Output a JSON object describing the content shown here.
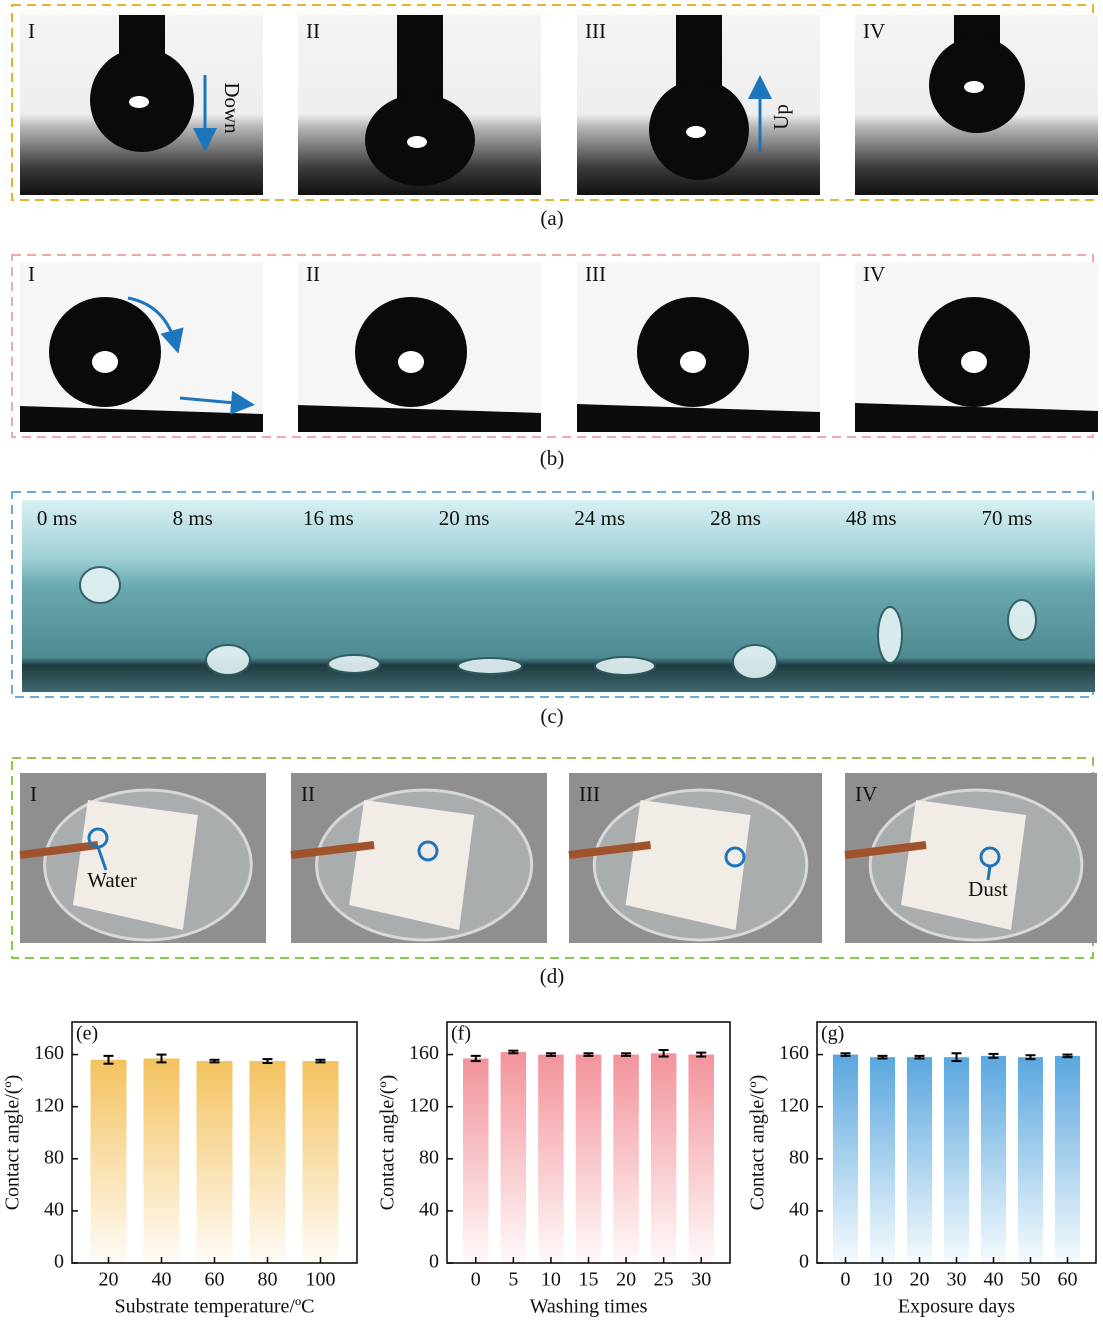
{
  "figure": {
    "panels": [
      {
        "caption": "(a)",
        "labels": [
          "I",
          "II",
          "III",
          "IV"
        ],
        "annotations": [
          "Down",
          "Up"
        ]
      },
      {
        "caption": "(b)",
        "labels": [
          "I",
          "II",
          "III",
          "IV"
        ]
      },
      {
        "caption": "(c)",
        "labels": [
          "0 ms",
          "8 ms",
          "16 ms",
          "20 ms",
          "24 ms",
          "28 ms",
          "48 ms",
          "70 ms"
        ]
      },
      {
        "caption": "(d)",
        "labels": [
          "I",
          "II",
          "III",
          "IV"
        ],
        "annotations": [
          "Water",
          "Dust"
        ]
      }
    ]
  },
  "chart_data": [
    {
      "type": "bar",
      "panel_label": "(e)",
      "xlabel": "Substrate temperature/ºC",
      "ylabel": "Contact angle/(º)",
      "categories": [
        "20",
        "40",
        "60",
        "80",
        "100"
      ],
      "values": [
        156,
        157,
        155,
        155,
        155
      ],
      "errors": [
        3,
        3,
        1,
        1.5,
        1
      ],
      "color": "#f3c25f",
      "ylim": [
        0,
        185
      ],
      "yticks": [
        0,
        40,
        80,
        120,
        160
      ]
    },
    {
      "type": "bar",
      "panel_label": "(f)",
      "xlabel": "Washing times",
      "ylabel": "Contact angle/(º)",
      "categories": [
        "0",
        "5",
        "10",
        "15",
        "20",
        "25",
        "30"
      ],
      "values": [
        157,
        162,
        160,
        160,
        160,
        161,
        160
      ],
      "errors": [
        2,
        1,
        1,
        1,
        1,
        2.5,
        1.5
      ],
      "color": "#f2939b",
      "ylim": [
        0,
        185
      ],
      "yticks": [
        0,
        40,
        80,
        120,
        160
      ]
    },
    {
      "type": "bar",
      "panel_label": "(g)",
      "xlabel": "Exposure days",
      "ylabel": "Contact angle/(º)",
      "categories": [
        "0",
        "10",
        "20",
        "30",
        "40",
        "50",
        "60"
      ],
      "values": [
        160,
        158,
        158,
        158,
        159,
        158,
        159
      ],
      "errors": [
        1,
        1,
        1,
        3,
        1.5,
        1.5,
        1
      ],
      "color": "#5aa7de",
      "ylim": [
        0,
        185
      ],
      "yticks": [
        0,
        40,
        80,
        120,
        160
      ]
    }
  ]
}
